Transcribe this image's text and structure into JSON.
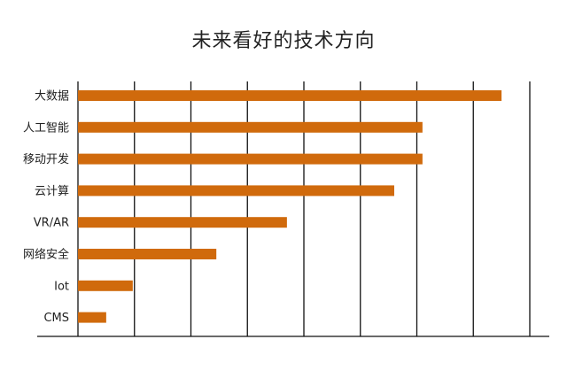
{
  "chart_data": {
    "type": "bar",
    "orientation": "horizontal",
    "title": "未来看好的技术方向",
    "categories": [
      "大数据",
      "人工智能",
      "移动开发",
      "云计算",
      "VR/AR",
      "网络安全",
      "Iot",
      "CMS"
    ],
    "values": [
      75,
      61,
      61,
      56,
      37,
      24.5,
      9.7,
      5
    ],
    "xlim": [
      0,
      80
    ],
    "grid": true,
    "bar_color": "#d06a0c"
  }
}
